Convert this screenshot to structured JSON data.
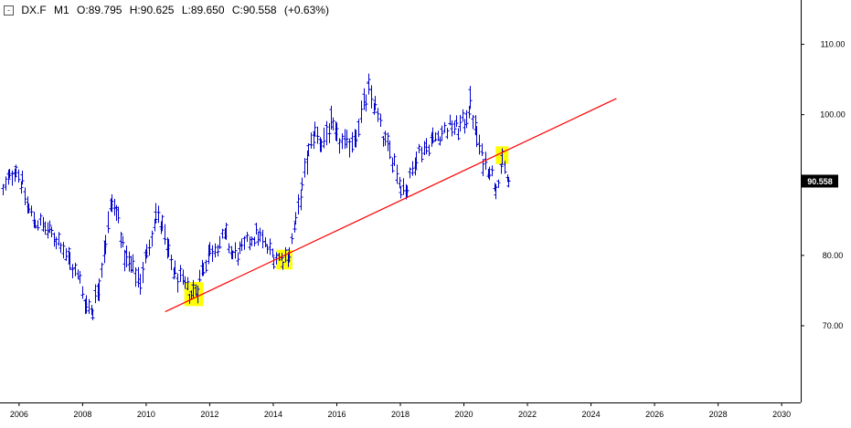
{
  "header": {
    "collapse_glyph": "-",
    "symbol": "DX.F",
    "timeframe": "M1",
    "open": "O:89.795",
    "high": "H:90.625",
    "low": "L:89.650",
    "close": "C:90.558",
    "change": "(+0.63%)"
  },
  "colors": {
    "bars": "#0000cc",
    "trendline": "#ff0000",
    "highlight": "#ffff00",
    "price_label_bg": "#000000",
    "price_label_text": "#ffffff",
    "axis": "#000000"
  },
  "chart_data": {
    "type": "ohlc",
    "x_axis": {
      "range": [
        2005.4,
        2030.6
      ],
      "ticks": [
        2006,
        2008,
        2010,
        2012,
        2014,
        2016,
        2018,
        2020,
        2022,
        2024,
        2026,
        2028,
        2030
      ],
      "tick_labels": [
        "2006",
        "2008",
        "2010",
        "2012",
        "2014",
        "2016",
        "2018",
        "2020",
        "2022",
        "2024",
        "2026",
        "2028",
        "2030"
      ]
    },
    "y_axis": {
      "range": [
        59.1,
        116.3
      ],
      "position": "right",
      "ticks": [
        70,
        80,
        100,
        110
      ],
      "tick_labels": [
        "70.00",
        "80.00",
        "100.00",
        "110.00"
      ]
    },
    "last_price": "90.558",
    "last_price_value": 90.558,
    "series": [
      {
        "x": [
          2005.5,
          2005.7,
          2005.9,
          2006.1,
          2006.3,
          2006.5,
          2006.8,
          2007.0,
          2007.3,
          2007.6,
          2007.9,
          2008.1,
          2008.3,
          2008.5,
          2008.7,
          2008.9,
          2009.1,
          2009.3,
          2009.5,
          2009.8,
          2010.0,
          2010.3,
          2010.5,
          2010.7,
          2010.9,
          2011.2,
          2011.4,
          2011.6,
          2011.8,
          2012.0,
          2012.3,
          2012.5,
          2012.7,
          2013.0,
          2013.3,
          2013.5,
          2013.8,
          2014.0,
          2014.3,
          2014.5,
          2014.7,
          2014.9,
          2015.1,
          2015.3,
          2015.5,
          2015.8,
          2016.0,
          2016.3,
          2016.6,
          2016.9,
          2017.0,
          2017.2,
          2017.5,
          2017.8,
          2018.0,
          2018.2,
          2018.5,
          2018.8,
          2019.0,
          2019.3,
          2019.6,
          2019.8,
          2020.0,
          2020.2,
          2020.4,
          2020.6,
          2020.8,
          2021.0,
          2021.2,
          2021.4
        ],
        "y": [
          89.0,
          91.0,
          92.5,
          90.0,
          86.5,
          85.0,
          84.0,
          83.0,
          82.0,
          79.0,
          76.5,
          73.0,
          72.5,
          76.0,
          82.0,
          87.5,
          85.5,
          80.0,
          78.5,
          76.5,
          80.0,
          86.0,
          84.0,
          80.0,
          77.5,
          75.5,
          74.5,
          75.5,
          78.5,
          80.5,
          82.0,
          82.5,
          80.0,
          80.5,
          82.5,
          83.0,
          81.0,
          80.0,
          79.5,
          80.5,
          84.5,
          89.5,
          94.5,
          97.5,
          96.0,
          98.5,
          96.5,
          95.5,
          97.5,
          102.0,
          103.5,
          101.0,
          96.0,
          93.5,
          90.0,
          89.5,
          94.5,
          95.5,
          96.5,
          97.5,
          98.5,
          98.0,
          99.0,
          101.5,
          97.0,
          93.5,
          92.5,
          90.0,
          93.0,
          90.558
        ],
        "ranges": [
          2.2,
          2.0,
          2.3,
          2.4,
          2.3,
          2.0,
          2.2,
          1.9,
          2.1,
          2.4,
          2.2,
          2.5,
          2.6,
          3.0,
          3.2,
          3.3,
          3.0,
          2.8,
          2.6,
          2.7,
          3.0,
          3.1,
          2.9,
          2.7,
          2.4,
          2.3,
          2.2,
          2.4,
          2.6,
          2.5,
          2.3,
          2.4,
          2.2,
          2.1,
          2.4,
          2.5,
          2.3,
          2.2,
          1.9,
          2.1,
          2.6,
          2.9,
          3.2,
          3.1,
          3.0,
          3.0,
          2.9,
          2.8,
          2.9,
          3.1,
          3.0,
          2.8,
          2.7,
          2.6,
          2.5,
          2.4,
          2.3,
          2.2,
          2.1,
          2.2,
          2.1,
          2.1,
          2.3,
          3.2,
          3.0,
          2.4,
          2.2,
          2.0,
          2.1,
          1.4
        ]
      }
    ],
    "trendline": {
      "x": [
        2010.6,
        2024.8
      ],
      "y": [
        72.0,
        102.3
      ]
    },
    "highlights": [
      {
        "x": [
          2011.2,
          2011.8
        ],
        "y": [
          72.8,
          76.2
        ]
      },
      {
        "x": [
          2014.1,
          2014.6
        ],
        "y": [
          78.0,
          80.8
        ]
      },
      {
        "x": [
          2021.0,
          2021.4
        ],
        "y": [
          93.0,
          95.5
        ]
      }
    ],
    "grid": false
  }
}
